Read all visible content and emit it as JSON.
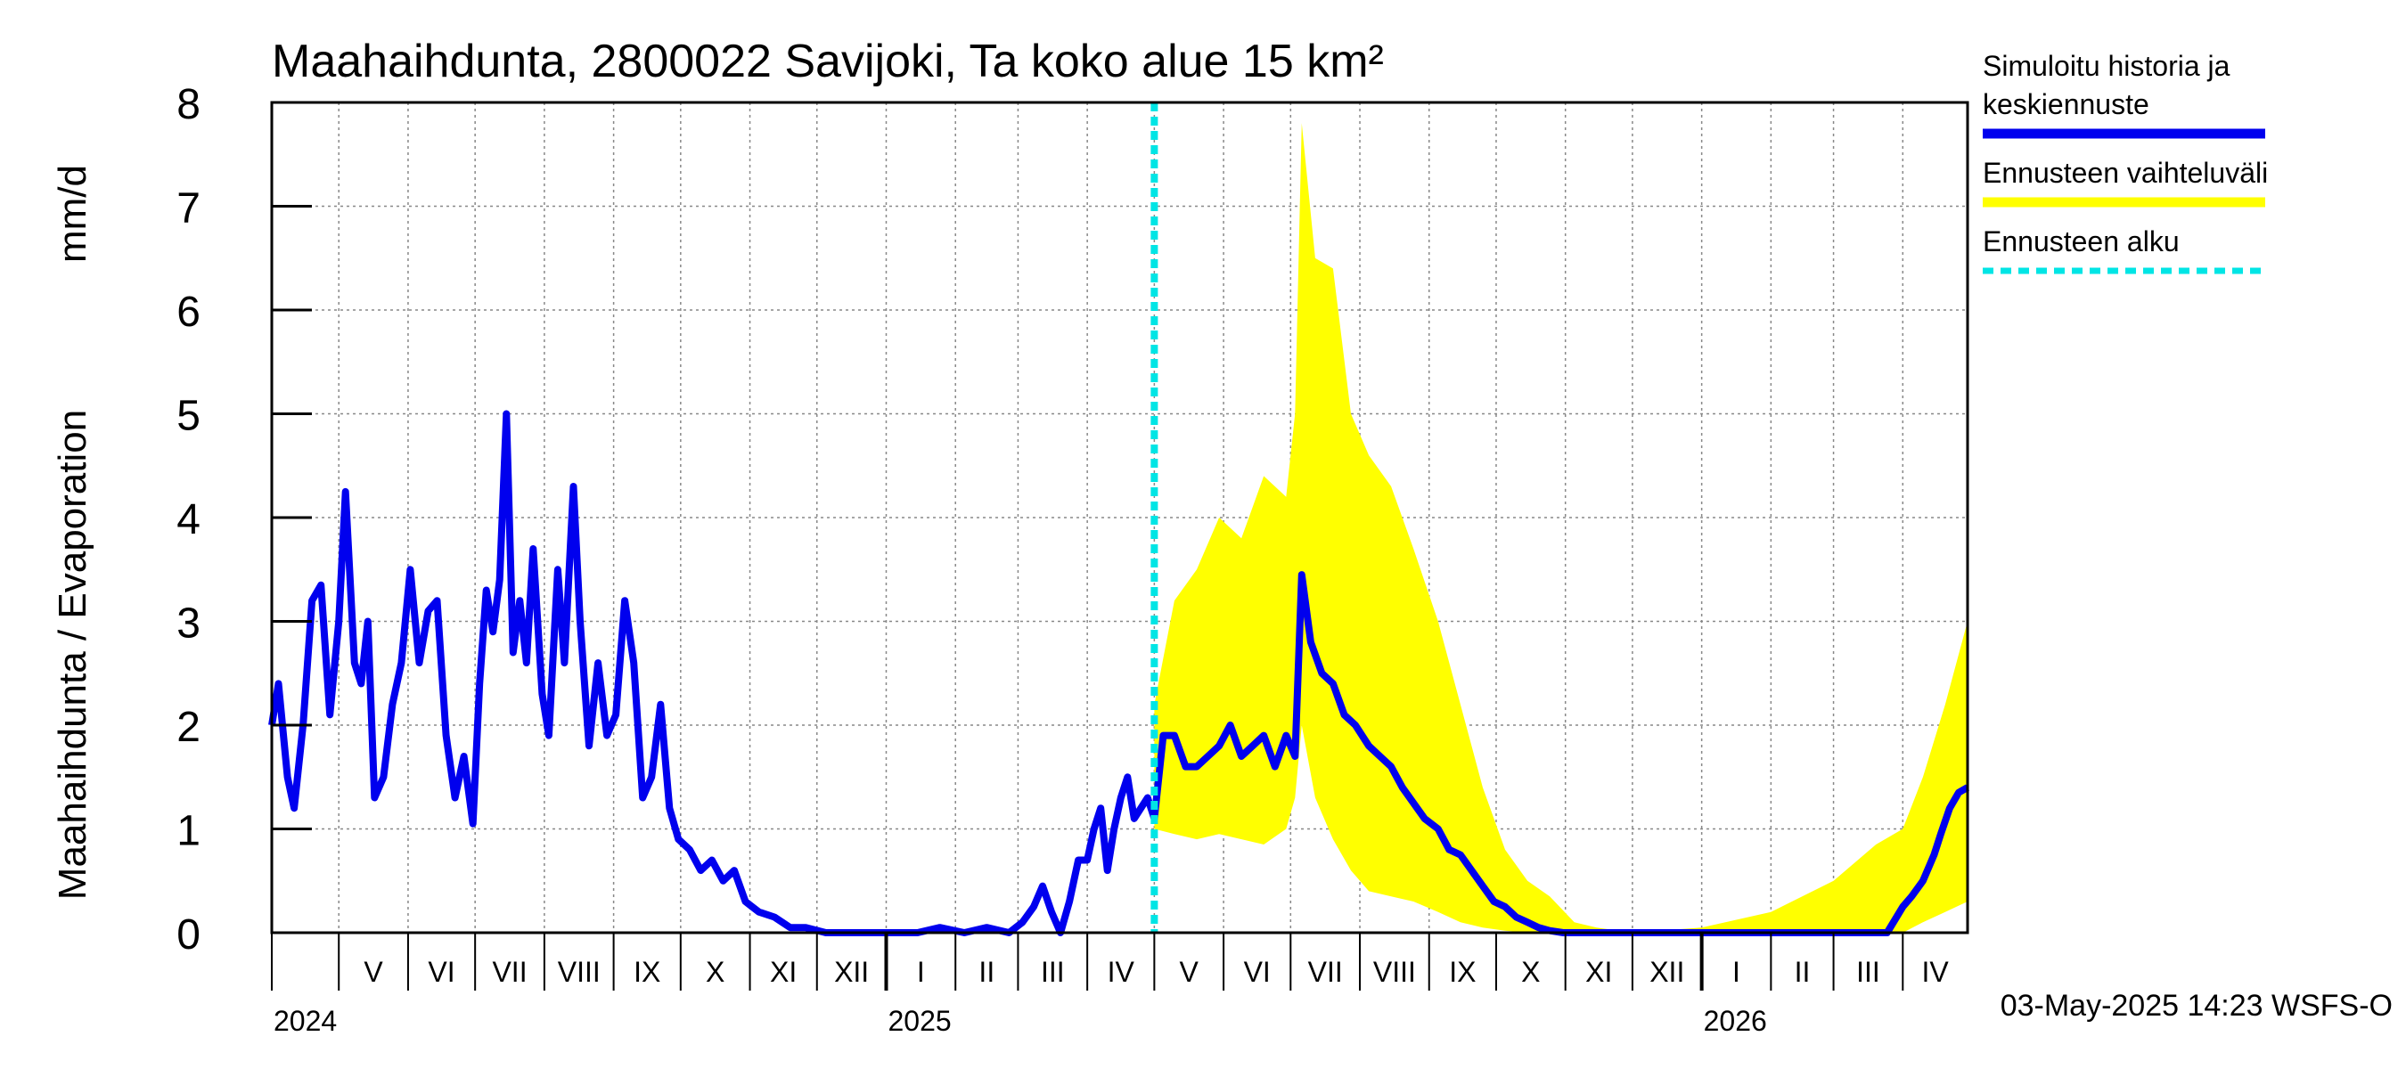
{
  "chart_data": {
    "type": "line",
    "title": "Maahaihdunta, 2800022 Savijoki, Ta koko alue 15 km²",
    "ylabel_left": "Maahaihdunta / Evaporation",
    "ylabel_unit": "mm/d",
    "ylim": [
      0,
      8
    ],
    "yticks": [
      "0",
      "1",
      "2",
      "3",
      "4",
      "5",
      "6",
      "7",
      "8"
    ],
    "xlim": [
      "2024-04-01",
      "2026-04-30"
    ],
    "grid": true,
    "legend_position": "right",
    "months": [
      {
        "label": "V",
        "date": "2024-05-01"
      },
      {
        "label": "VI",
        "date": "2024-06-01"
      },
      {
        "label": "VII",
        "date": "2024-07-01"
      },
      {
        "label": "VIII",
        "date": "2024-08-01"
      },
      {
        "label": "IX",
        "date": "2024-09-01"
      },
      {
        "label": "X",
        "date": "2024-10-01"
      },
      {
        "label": "XI",
        "date": "2024-11-01"
      },
      {
        "label": "XII",
        "date": "2024-12-01"
      },
      {
        "label": "I",
        "date": "2025-01-01"
      },
      {
        "label": "II",
        "date": "2025-02-01"
      },
      {
        "label": "III",
        "date": "2025-03-01"
      },
      {
        "label": "IV",
        "date": "2025-04-01"
      },
      {
        "label": "V",
        "date": "2025-05-01"
      },
      {
        "label": "VI",
        "date": "2025-06-01"
      },
      {
        "label": "VII",
        "date": "2025-07-01"
      },
      {
        "label": "VIII",
        "date": "2025-08-01"
      },
      {
        "label": "IX",
        "date": "2025-09-01"
      },
      {
        "label": "X",
        "date": "2025-10-01"
      },
      {
        "label": "XI",
        "date": "2025-11-01"
      },
      {
        "label": "XII",
        "date": "2025-12-01"
      },
      {
        "label": "I",
        "date": "2026-01-01"
      },
      {
        "label": "II",
        "date": "2026-02-01"
      },
      {
        "label": "III",
        "date": "2026-03-01"
      },
      {
        "label": "IV",
        "date": "2026-04-01"
      }
    ],
    "years": [
      {
        "label": "2024",
        "date": "2024-05-01"
      },
      {
        "label": "2025",
        "date": "2025-01-01"
      },
      {
        "label": "2026",
        "date": "2026-01-01"
      }
    ],
    "forecast_start": "2025-05-01",
    "series": [
      {
        "name": "Simuloitu historia ja keskiennuste",
        "color": "#0000ee",
        "x": [
          "2024-04-01",
          "2024-04-04",
          "2024-04-08",
          "2024-04-11",
          "2024-04-15",
          "2024-04-19",
          "2024-04-23",
          "2024-04-27",
          "2024-05-01",
          "2024-05-04",
          "2024-05-08",
          "2024-05-11",
          "2024-05-14",
          "2024-05-17",
          "2024-05-21",
          "2024-05-25",
          "2024-05-29",
          "2024-06-02",
          "2024-06-06",
          "2024-06-10",
          "2024-06-14",
          "2024-06-18",
          "2024-06-22",
          "2024-06-26",
          "2024-06-30",
          "2024-07-03",
          "2024-07-06",
          "2024-07-09",
          "2024-07-12",
          "2024-07-15",
          "2024-07-18",
          "2024-07-21",
          "2024-07-24",
          "2024-07-27",
          "2024-07-31",
          "2024-08-03",
          "2024-08-07",
          "2024-08-10",
          "2024-08-14",
          "2024-08-17",
          "2024-08-21",
          "2024-08-25",
          "2024-08-29",
          "2024-09-02",
          "2024-09-06",
          "2024-09-10",
          "2024-09-14",
          "2024-09-18",
          "2024-09-22",
          "2024-09-26",
          "2024-09-30",
          "2024-10-05",
          "2024-10-10",
          "2024-10-15",
          "2024-10-20",
          "2024-10-25",
          "2024-10-30",
          "2024-11-05",
          "2024-11-12",
          "2024-11-19",
          "2024-11-26",
          "2024-12-05",
          "2024-12-15",
          "2024-12-25",
          "2025-01-05",
          "2025-01-15",
          "2025-01-25",
          "2025-02-05",
          "2025-02-15",
          "2025-02-25",
          "2025-03-03",
          "2025-03-08",
          "2025-03-12",
          "2025-03-16",
          "2025-03-20",
          "2025-03-24",
          "2025-03-28",
          "2025-04-01",
          "2025-04-04",
          "2025-04-07",
          "2025-04-10",
          "2025-04-13",
          "2025-04-16",
          "2025-04-19",
          "2025-04-22",
          "2025-04-25",
          "2025-04-28",
          "2025-05-01",
          "2025-05-05",
          "2025-05-10",
          "2025-05-15",
          "2025-05-20",
          "2025-05-25",
          "2025-05-30",
          "2025-06-04",
          "2025-06-09",
          "2025-06-14",
          "2025-06-19",
          "2025-06-24",
          "2025-06-29",
          "2025-07-03",
          "2025-07-06",
          "2025-07-10",
          "2025-07-15",
          "2025-07-20",
          "2025-07-25",
          "2025-07-30",
          "2025-08-05",
          "2025-08-10",
          "2025-08-15",
          "2025-08-20",
          "2025-08-25",
          "2025-08-30",
          "2025-09-05",
          "2025-09-10",
          "2025-09-15",
          "2025-09-20",
          "2025-09-25",
          "2025-09-30",
          "2025-10-05",
          "2025-10-10",
          "2025-10-15",
          "2025-10-20",
          "2025-10-25",
          "2025-10-31",
          "2025-11-05",
          "2025-11-10",
          "2025-11-15",
          "2025-12-01",
          "2026-01-01",
          "2026-02-01",
          "2026-03-01",
          "2026-03-25",
          "2026-04-01",
          "2026-04-05",
          "2026-04-10",
          "2026-04-15",
          "2026-04-18",
          "2026-04-22",
          "2026-04-26",
          "2026-04-30"
        ],
        "y": [
          2.0,
          2.4,
          1.5,
          1.2,
          2.0,
          3.2,
          3.35,
          2.1,
          3.0,
          4.25,
          2.6,
          2.4,
          3.0,
          1.3,
          1.5,
          2.2,
          2.6,
          3.5,
          2.6,
          3.1,
          3.2,
          1.9,
          1.3,
          1.7,
          1.05,
          2.4,
          3.3,
          2.9,
          3.4,
          5.0,
          2.7,
          3.2,
          2.6,
          3.7,
          2.3,
          1.9,
          3.5,
          2.6,
          4.3,
          3.0,
          1.8,
          2.6,
          1.9,
          2.1,
          3.2,
          2.6,
          1.3,
          1.5,
          2.2,
          1.2,
          0.9,
          0.8,
          0.6,
          0.7,
          0.5,
          0.6,
          0.3,
          0.2,
          0.15,
          0.05,
          0.05,
          0.0,
          0.0,
          0.0,
          0.0,
          0.0,
          0.05,
          0.0,
          0.05,
          0.0,
          0.1,
          0.25,
          0.45,
          0.2,
          0.0,
          0.3,
          0.7,
          0.7,
          1.0,
          1.2,
          0.6,
          1.0,
          1.3,
          1.5,
          1.1,
          1.2,
          1.3,
          1.1,
          1.9,
          1.9,
          1.6,
          1.6,
          1.7,
          1.8,
          2.0,
          1.7,
          1.8,
          1.9,
          1.6,
          1.9,
          1.7,
          3.45,
          2.8,
          2.5,
          2.4,
          2.1,
          2.0,
          1.8,
          1.7,
          1.6,
          1.4,
          1.25,
          1.1,
          1.0,
          0.8,
          0.75,
          0.6,
          0.45,
          0.3,
          0.25,
          0.15,
          0.1,
          0.05,
          0.02,
          0.0,
          0.0,
          0.0,
          0.0,
          0.0,
          0.0,
          0.0,
          0.0,
          0.0,
          0.25,
          0.35,
          0.5,
          0.75,
          0.95,
          1.2,
          1.35,
          1.4
        ]
      },
      {
        "name": "Ennusteen vaihteluväli",
        "color": "#ffff00",
        "x": [
          "2025-05-01",
          "2025-05-10",
          "2025-05-20",
          "2025-05-30",
          "2025-06-09",
          "2025-06-19",
          "2025-06-29",
          "2025-07-03",
          "2025-07-06",
          "2025-07-12",
          "2025-07-20",
          "2025-07-28",
          "2025-08-05",
          "2025-08-15",
          "2025-08-25",
          "2025-09-05",
          "2025-09-15",
          "2025-09-25",
          "2025-10-05",
          "2025-10-15",
          "2025-10-25",
          "2025-11-05",
          "2025-11-15",
          "2025-12-01",
          "2026-01-01",
          "2026-02-01",
          "2026-03-01",
          "2026-03-20",
          "2026-04-01",
          "2026-04-10",
          "2026-04-20",
          "2026-04-30"
        ],
        "upper": [
          2.2,
          3.2,
          3.5,
          4.0,
          3.8,
          4.4,
          4.2,
          5.0,
          7.8,
          6.5,
          6.4,
          5.0,
          4.6,
          4.3,
          3.7,
          3.0,
          2.2,
          1.4,
          0.8,
          0.5,
          0.35,
          0.1,
          0.05,
          0.0,
          0.05,
          0.2,
          0.5,
          0.85,
          1.0,
          1.5,
          2.2,
          3.0
        ],
        "lower": [
          1.0,
          0.95,
          0.9,
          0.95,
          0.9,
          0.85,
          1.0,
          1.3,
          2.0,
          1.3,
          0.9,
          0.6,
          0.4,
          0.35,
          0.3,
          0.2,
          0.1,
          0.05,
          0.02,
          0.0,
          0.0,
          0.0,
          0.0,
          0.0,
          0.0,
          0.0,
          0.0,
          0.0,
          0.0,
          0.1,
          0.2,
          0.3
        ]
      }
    ],
    "legend": [
      {
        "lines": [
          "Simuloitu historia ja",
          "keskiennuste"
        ],
        "color": "#0000ee",
        "style": "solid"
      },
      {
        "lines": [
          "Ennusteen vaihteluväli"
        ],
        "color": "#ffff00",
        "style": "solid"
      },
      {
        "lines": [
          "Ennusteen alku"
        ],
        "color": "#00e5e5",
        "style": "dashed"
      }
    ],
    "footer": "03-May-2025 14:23 WSFS-O"
  }
}
